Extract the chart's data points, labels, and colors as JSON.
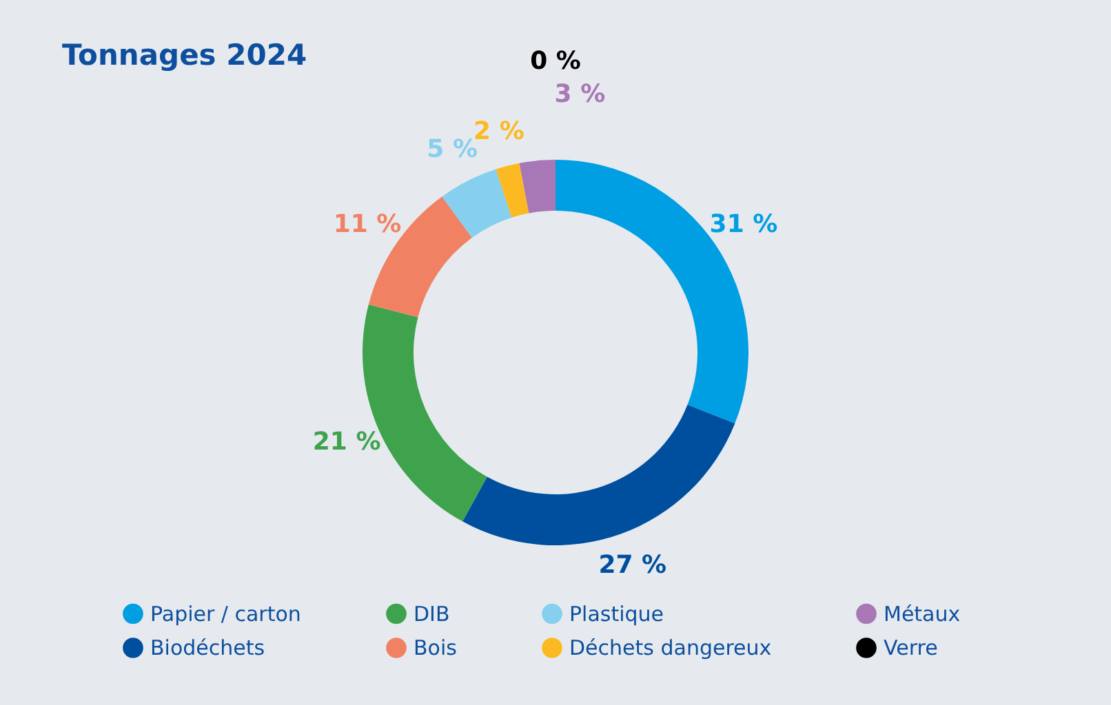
{
  "chart_data": {
    "type": "donut",
    "title": "Tonnages 2024",
    "categories": [
      "Papier / carton",
      "Biodéchets",
      "DIB",
      "Bois",
      "Plastique",
      "Déchets dangereux",
      "Métaux",
      "Verre"
    ],
    "values": [
      31,
      27,
      21,
      11,
      5,
      2,
      3,
      0
    ],
    "colors": [
      "#009fe3",
      "#004f9f",
      "#3fa34d",
      "#f08263",
      "#87cfef",
      "#fbba21",
      "#a778b5",
      "#000000"
    ],
    "value_labels": [
      "31 %",
      "27 %",
      "21 %",
      "11 %",
      "5 %",
      "2 %",
      "3 %",
      "0 %"
    ],
    "legend": "bottom"
  }
}
